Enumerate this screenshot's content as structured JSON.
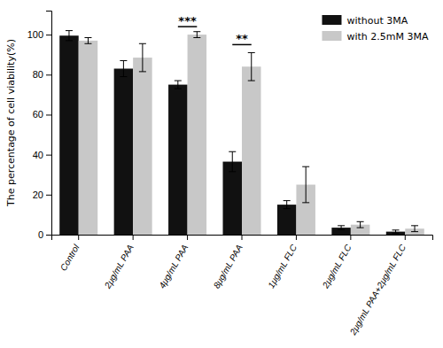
{
  "chart_data": {
    "type": "bar",
    "categories": [
      "Control",
      "2μg/mL PAA",
      "4μg/mL PAA",
      "8μg/mL PAA",
      "1μg/mL FLC",
      "2μg/mL FLC",
      "2μg/mL PAA+2μg/mL FLC"
    ],
    "series": [
      {
        "name": "without 3MA",
        "color": "#111111",
        "values": [
          99.5,
          83.0,
          75.0,
          36.5,
          15.0,
          3.5,
          1.5
        ],
        "errors": [
          2.5,
          4.0,
          2.0,
          5.0,
          2.0,
          1.0,
          0.8
        ]
      },
      {
        "name": "with 2.5mM 3MA",
        "color": "#c8c8c8",
        "values": [
          97.0,
          88.5,
          100.0,
          84.0,
          25.0,
          5.0,
          3.0
        ],
        "errors": [
          1.5,
          7.0,
          1.5,
          7.0,
          9.0,
          1.5,
          1.5
        ]
      }
    ],
    "y_label": "The percentage of cell viability(%)",
    "ylim": [
      0,
      112
    ],
    "yticks": [
      0,
      20,
      40,
      60,
      80,
      100
    ],
    "annotations": [
      {
        "text": "***",
        "category": "4μg/mL PAA",
        "y": 104
      },
      {
        "text": "**",
        "category": "8μg/mL PAA",
        "y": 95
      }
    ],
    "legend": "upper right",
    "grid": false
  }
}
